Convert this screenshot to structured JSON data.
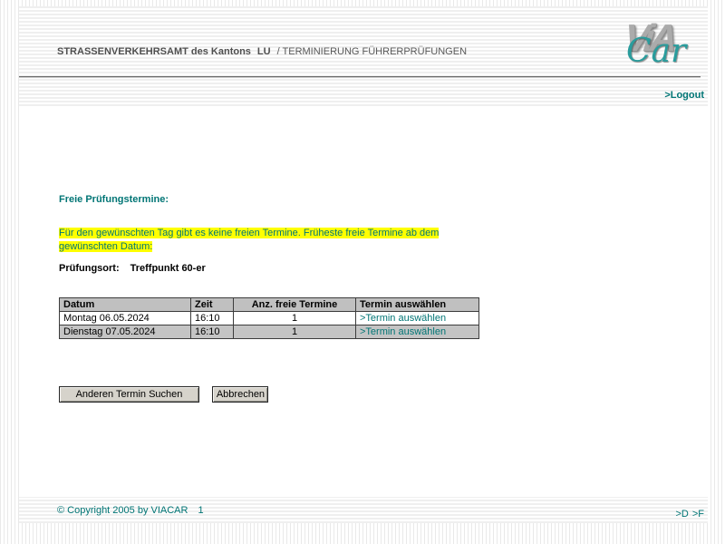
{
  "colors": {
    "teal": "#007575",
    "highlight_yellow": "#ffff00",
    "table_header_bg": "#c0c0c0",
    "button_face": "#d6d3cb",
    "logo_grey": "#ababab",
    "logo_teal": "#2a9c9c"
  },
  "header": {
    "title_office": "STRASSENVERKEHRSAMT des Kantons",
    "title_canton": "LU",
    "title_separator": "/",
    "title_app": "TERMINIERUNG FÜHRERPRÜFUNGEN",
    "logo_text_via": "ViA",
    "logo_text_car": "Car",
    "logout_label": ">Logout"
  },
  "main": {
    "heading": "Freie Prüfungstermine:",
    "message": "Für den gewünschten Tag gibt es keine freien Termine. Früheste freie Termine ab dem gewünschten Datum:",
    "location_label": "Prüfungsort:",
    "location_value": "Treffpunkt 60-er",
    "table": {
      "headers": [
        "Datum",
        "Zeit",
        "Anz. freie Termine",
        "Termin auswählen"
      ],
      "rows": [
        {
          "datum": "Montag 06.05.2024",
          "zeit": "16:10",
          "anzahl": "1",
          "link": ">Termin auswählen"
        },
        {
          "datum": "Dienstag 07.05.2024",
          "zeit": "16:10",
          "anzahl": "1",
          "link": ">Termin auswählen"
        }
      ]
    },
    "buttons": {
      "search_label": "Anderen Termin Suchen",
      "cancel_label": "Abbrechen"
    }
  },
  "footer": {
    "copyright": "© Copyright 2005 by VIACAR",
    "page_indicator": "1",
    "lang_de": ">D",
    "lang_fr": ">F"
  }
}
